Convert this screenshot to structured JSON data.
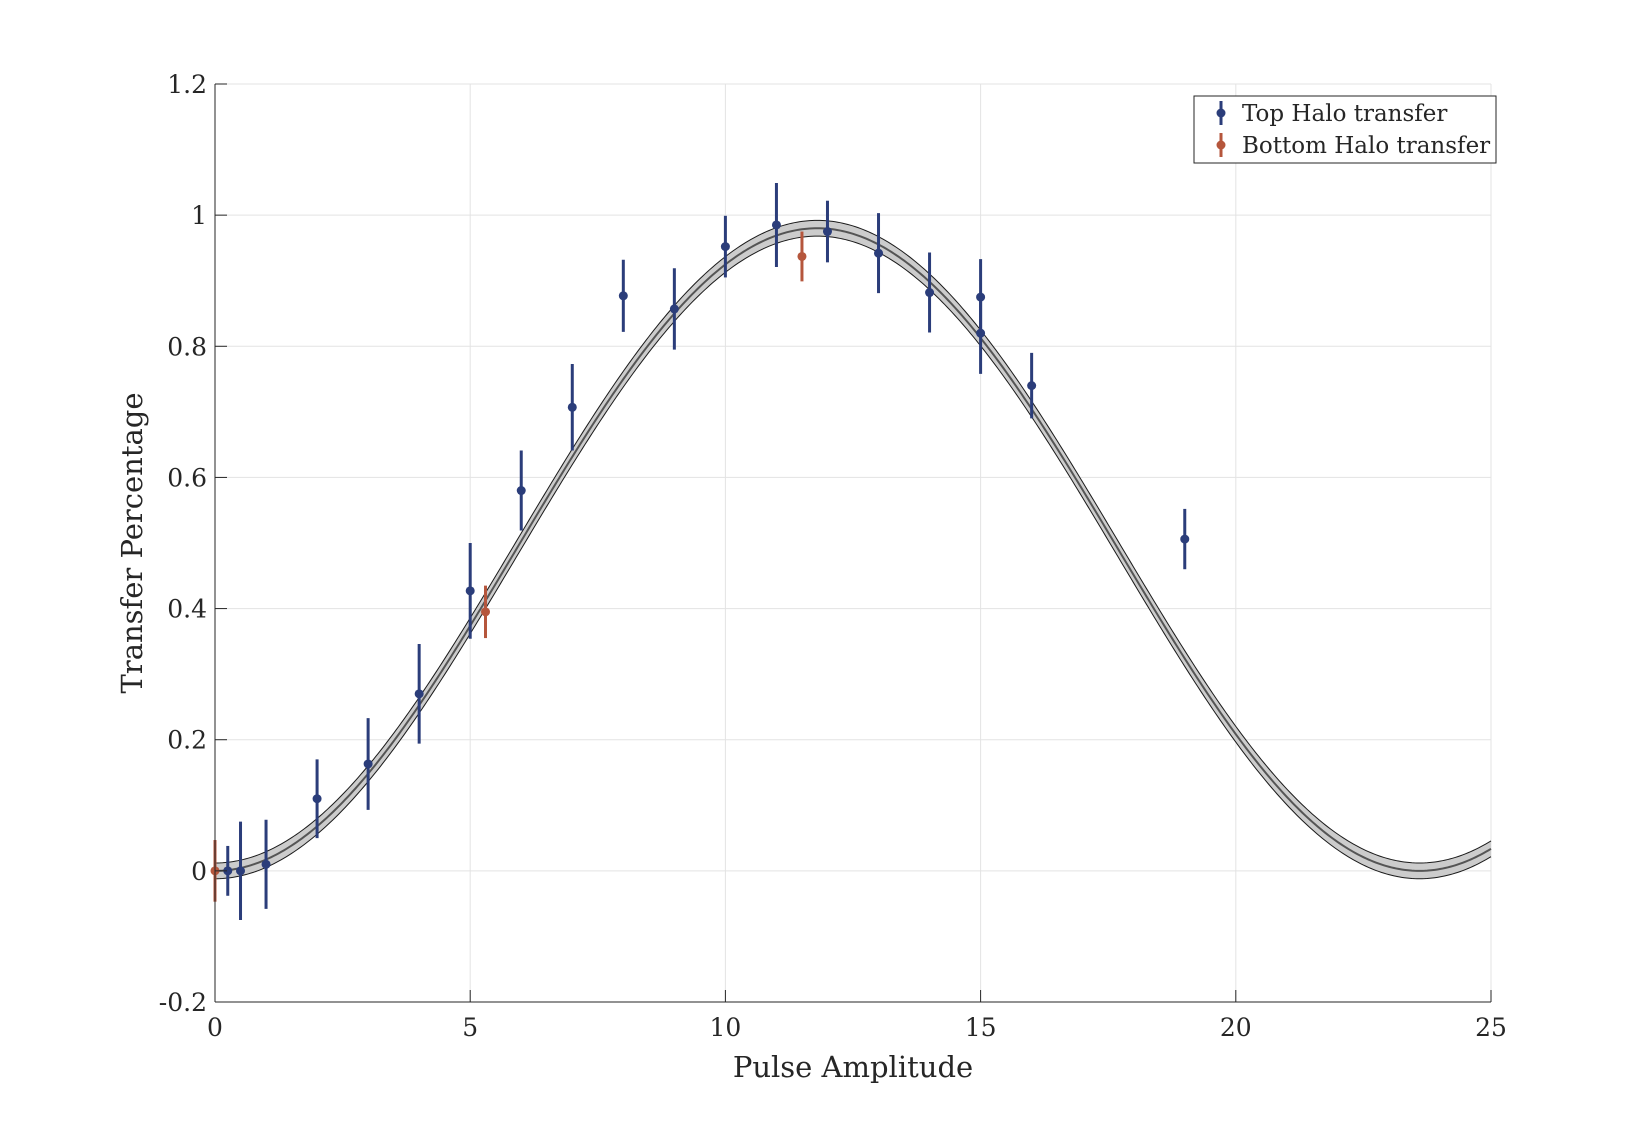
{
  "chart_data": {
    "type": "scatter",
    "xlabel": "Pulse Amplitude",
    "ylabel": "Transfer Percentage",
    "xlim": [
      0,
      25
    ],
    "ylim": [
      -0.2,
      1.2
    ],
    "xticks": [
      0,
      5,
      10,
      15,
      20,
      25
    ],
    "xtick_labels": [
      "0",
      "5",
      "10",
      "15",
      "20",
      "25"
    ],
    "yticks": [
      -0.2,
      0,
      0.2,
      0.4,
      0.6,
      0.8,
      1,
      1.2
    ],
    "ytick_labels": [
      "-0.2",
      "0",
      "0.2",
      "0.4",
      "0.6",
      "0.8",
      "1",
      "1.2"
    ],
    "grid": true,
    "legend_position": "top-right",
    "series": [
      {
        "name": "Top Halo transfer",
        "color": "#2b3d7a",
        "points": [
          {
            "x": 0.25,
            "y": 0.0,
            "err": 0.038
          },
          {
            "x": 0.5,
            "y": 0.0,
            "err": 0.075
          },
          {
            "x": 1,
            "y": 0.01,
            "err": 0.068
          },
          {
            "x": 2,
            "y": 0.11,
            "err": 0.06
          },
          {
            "x": 3,
            "y": 0.163,
            "err": 0.07
          },
          {
            "x": 4,
            "y": 0.27,
            "err": 0.076
          },
          {
            "x": 5,
            "y": 0.427,
            "err": 0.073
          },
          {
            "x": 6,
            "y": 0.58,
            "err": 0.061
          },
          {
            "x": 7,
            "y": 0.707,
            "err": 0.066
          },
          {
            "x": 8,
            "y": 0.877,
            "err": 0.055
          },
          {
            "x": 9,
            "y": 0.857,
            "err": 0.062
          },
          {
            "x": 10,
            "y": 0.952,
            "err": 0.047
          },
          {
            "x": 11,
            "y": 0.985,
            "err": 0.064
          },
          {
            "x": 12,
            "y": 0.975,
            "err": 0.047
          },
          {
            "x": 13,
            "y": 0.942,
            "err": 0.061
          },
          {
            "x": 14,
            "y": 0.882,
            "err": 0.061
          },
          {
            "x": 15,
            "y": 0.875,
            "err": 0.058
          },
          {
            "x": 15,
            "y": 0.82,
            "err": 0.062
          },
          {
            "x": 16,
            "y": 0.74,
            "err": 0.05
          },
          {
            "x": 19,
            "y": 0.506,
            "err": 0.046
          }
        ]
      },
      {
        "name": "Bottom Halo transfer",
        "color": "#b5563c",
        "points": [
          {
            "x": 0,
            "y": 0.0,
            "err": 0.047
          },
          {
            "x": 5.3,
            "y": 0.395,
            "err": 0.04
          },
          {
            "x": 11.5,
            "y": 0.937,
            "err": 0.038
          }
        ]
      }
    ],
    "fit": {
      "model": "A*sin^2(pi*x/(2*x0))",
      "amplitude": 0.98,
      "x0": 11.8,
      "x_end": 25,
      "band_halfwidth": 0.012,
      "line_color": "#555555",
      "band_fill": "#cccccc",
      "band_edge": "#1a1a1a"
    }
  }
}
